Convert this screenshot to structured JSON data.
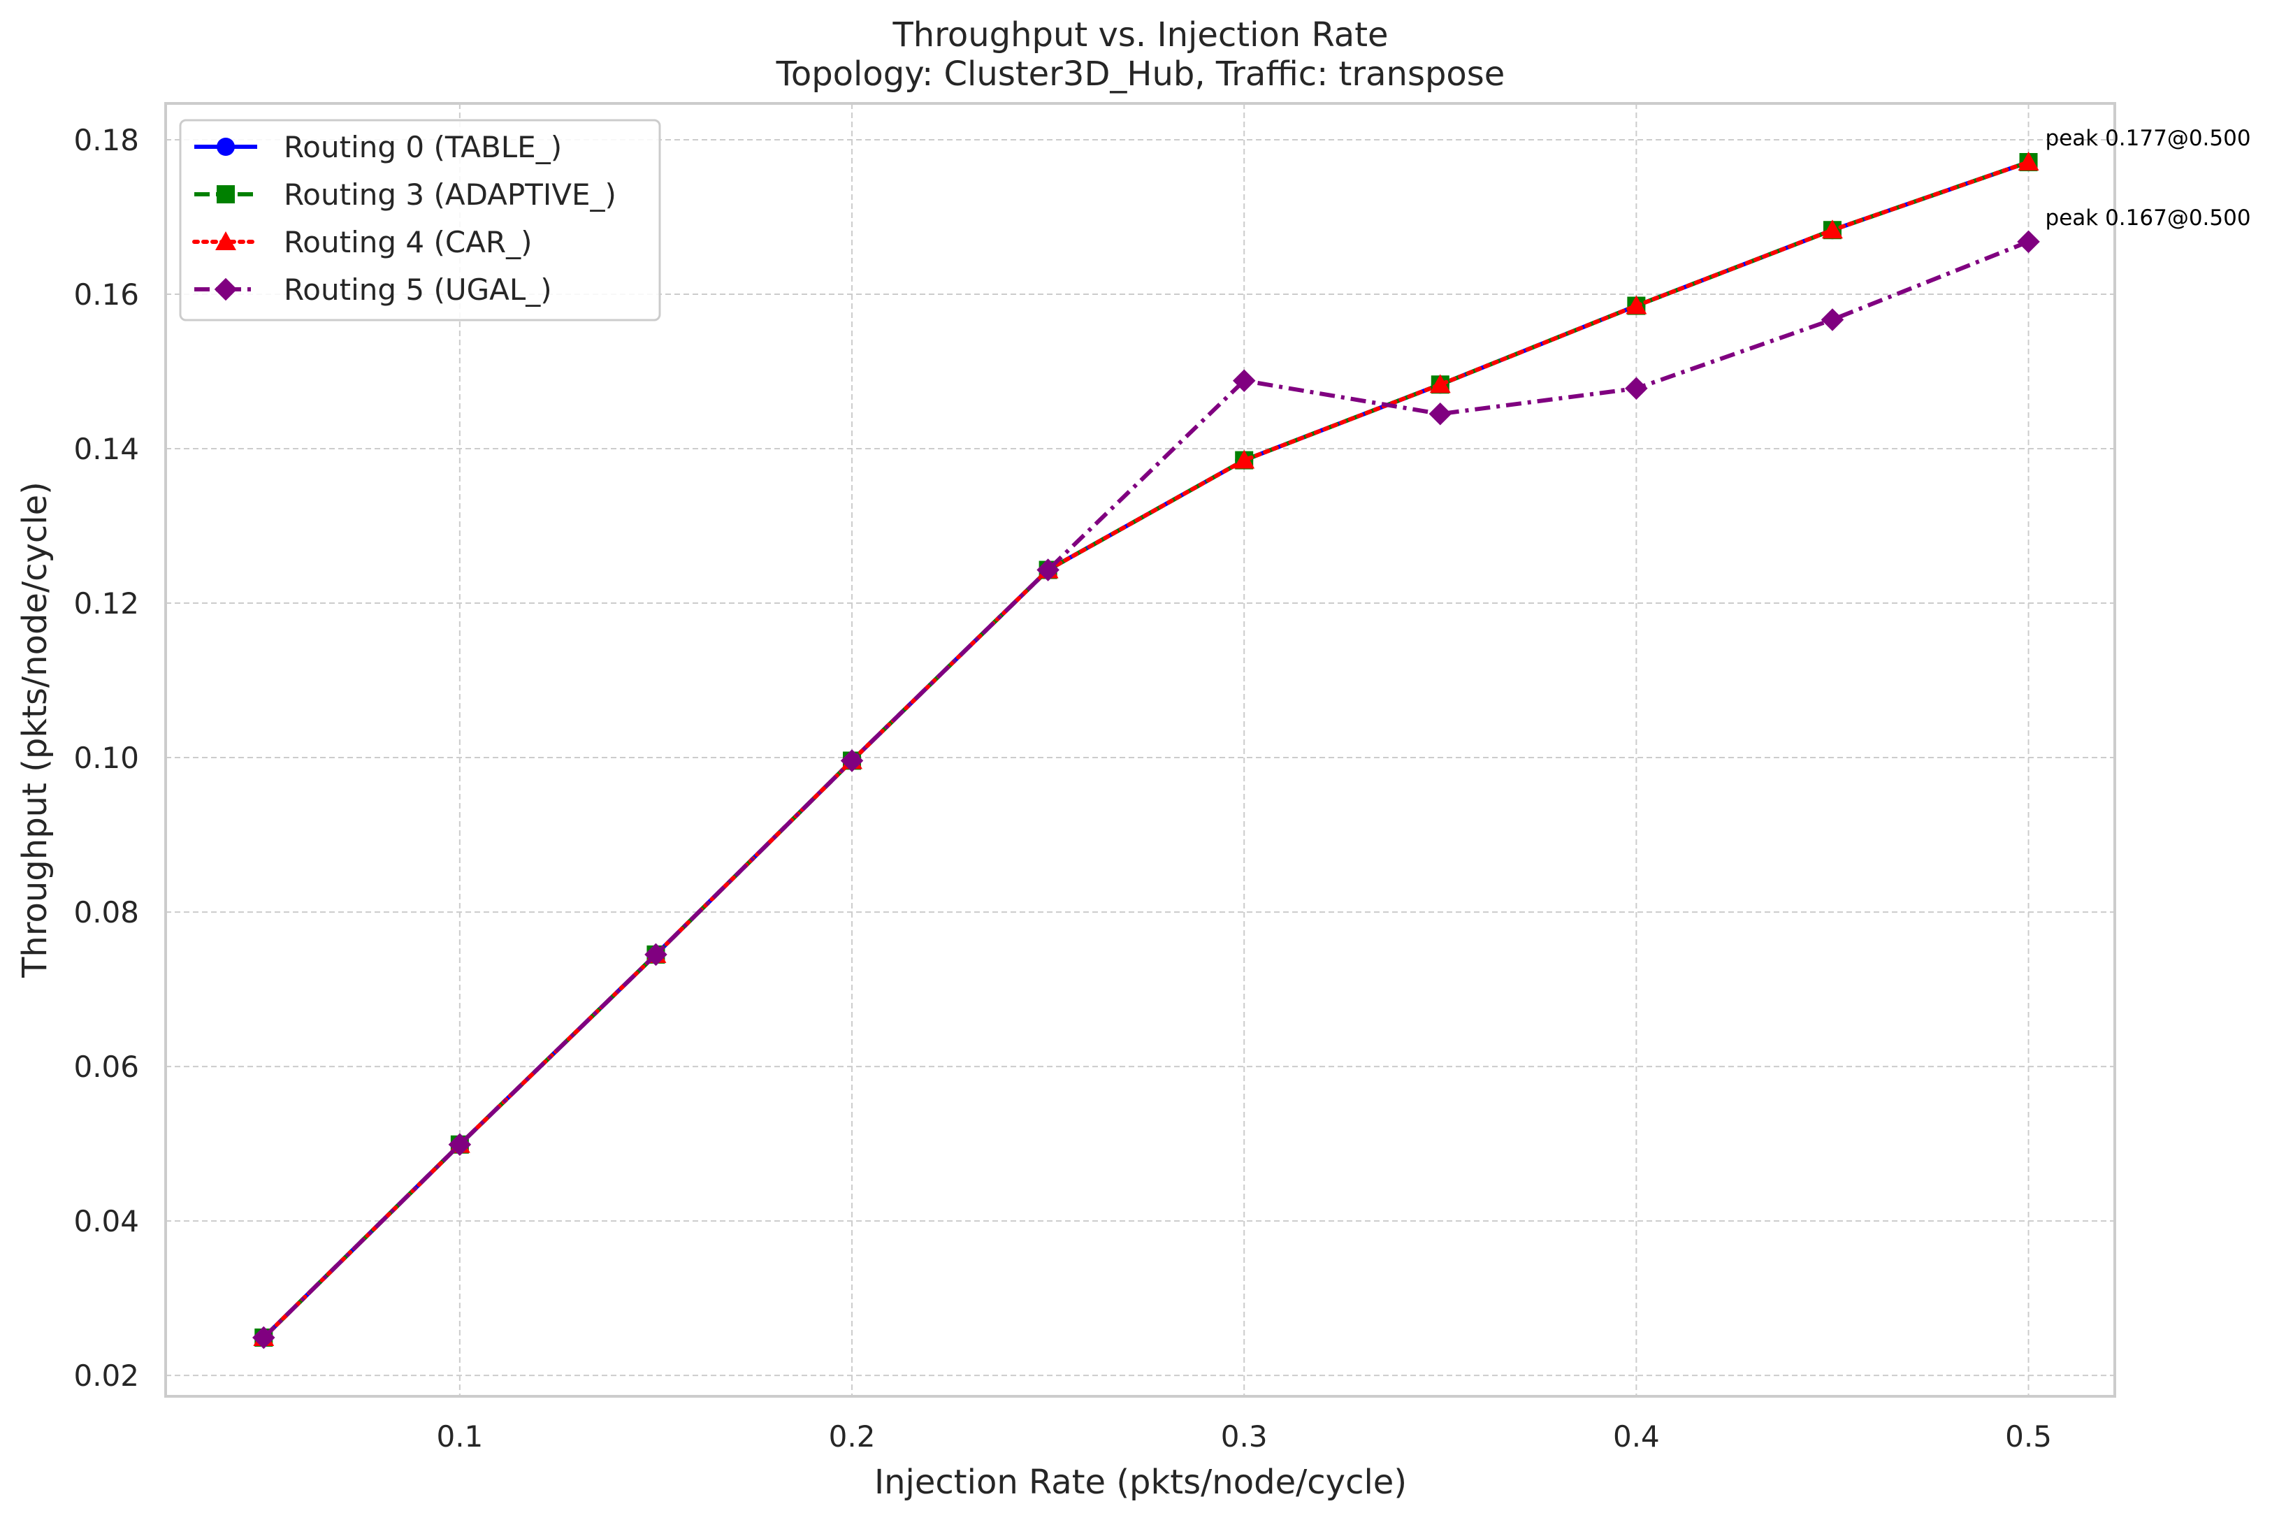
{
  "chart_data": {
    "type": "line",
    "title": "Throughput vs. Injection Rate",
    "subtitle": "Topology: Cluster3D_Hub, Traffic: transpose",
    "xlabel": "Injection Rate (pkts/node/cycle)",
    "ylabel": "Throughput (pkts/node/cycle)",
    "xlim": [
      0.025,
      0.522
    ],
    "ylim": [
      0.0173,
      0.1847
    ],
    "grid": true,
    "legend_position": "top-left",
    "x_ticks": [
      0.1,
      0.2,
      0.3,
      0.4,
      0.5
    ],
    "x_tick_labels": [
      "0.1",
      "0.2",
      "0.3",
      "0.4",
      "0.5"
    ],
    "y_ticks": [
      0.02,
      0.04,
      0.06,
      0.08,
      0.1,
      0.12,
      0.14,
      0.16,
      0.18
    ],
    "y_tick_labels": [
      "0.02",
      "0.04",
      "0.06",
      "0.08",
      "0.10",
      "0.12",
      "0.14",
      "0.16",
      "0.18"
    ],
    "x": [
      0.05,
      0.1,
      0.15,
      0.2,
      0.25,
      0.3,
      0.35,
      0.4,
      0.45,
      0.5
    ],
    "series": [
      {
        "name": "Routing 0 (TABLE_)",
        "color": "#0000ff",
        "marker": "circle",
        "linestyle": "solid",
        "values": [
          0.0249,
          0.0499,
          0.0745,
          0.0996,
          0.1243,
          0.1385,
          0.1483,
          0.1585,
          0.1683,
          0.1771
        ]
      },
      {
        "name": "Routing 3 (ADAPTIVE_)",
        "color": "#008000",
        "marker": "square",
        "linestyle": "dashed",
        "values": [
          0.0249,
          0.0499,
          0.0745,
          0.0996,
          0.1243,
          0.1385,
          0.1483,
          0.1585,
          0.1683,
          0.1771
        ]
      },
      {
        "name": "Routing 4 (CAR_)",
        "color": "#ff0000",
        "marker": "triangle",
        "linestyle": "dotted",
        "values": [
          0.0249,
          0.0499,
          0.0745,
          0.0996,
          0.1243,
          0.1385,
          0.1483,
          0.1585,
          0.1683,
          0.1771
        ]
      },
      {
        "name": "Routing 5 (UGAL_)",
        "color": "#800080",
        "marker": "diamond",
        "linestyle": "dashdot",
        "values": [
          0.0249,
          0.0499,
          0.0745,
          0.0996,
          0.1243,
          0.1488,
          0.1445,
          0.1478,
          0.1567,
          0.1668
        ]
      }
    ],
    "annotations": [
      {
        "text": "peak 0.177@0.500",
        "x": 0.5,
        "y": 0.1771
      },
      {
        "text": "peak 0.167@0.500",
        "x": 0.5,
        "y": 0.1668
      }
    ]
  }
}
